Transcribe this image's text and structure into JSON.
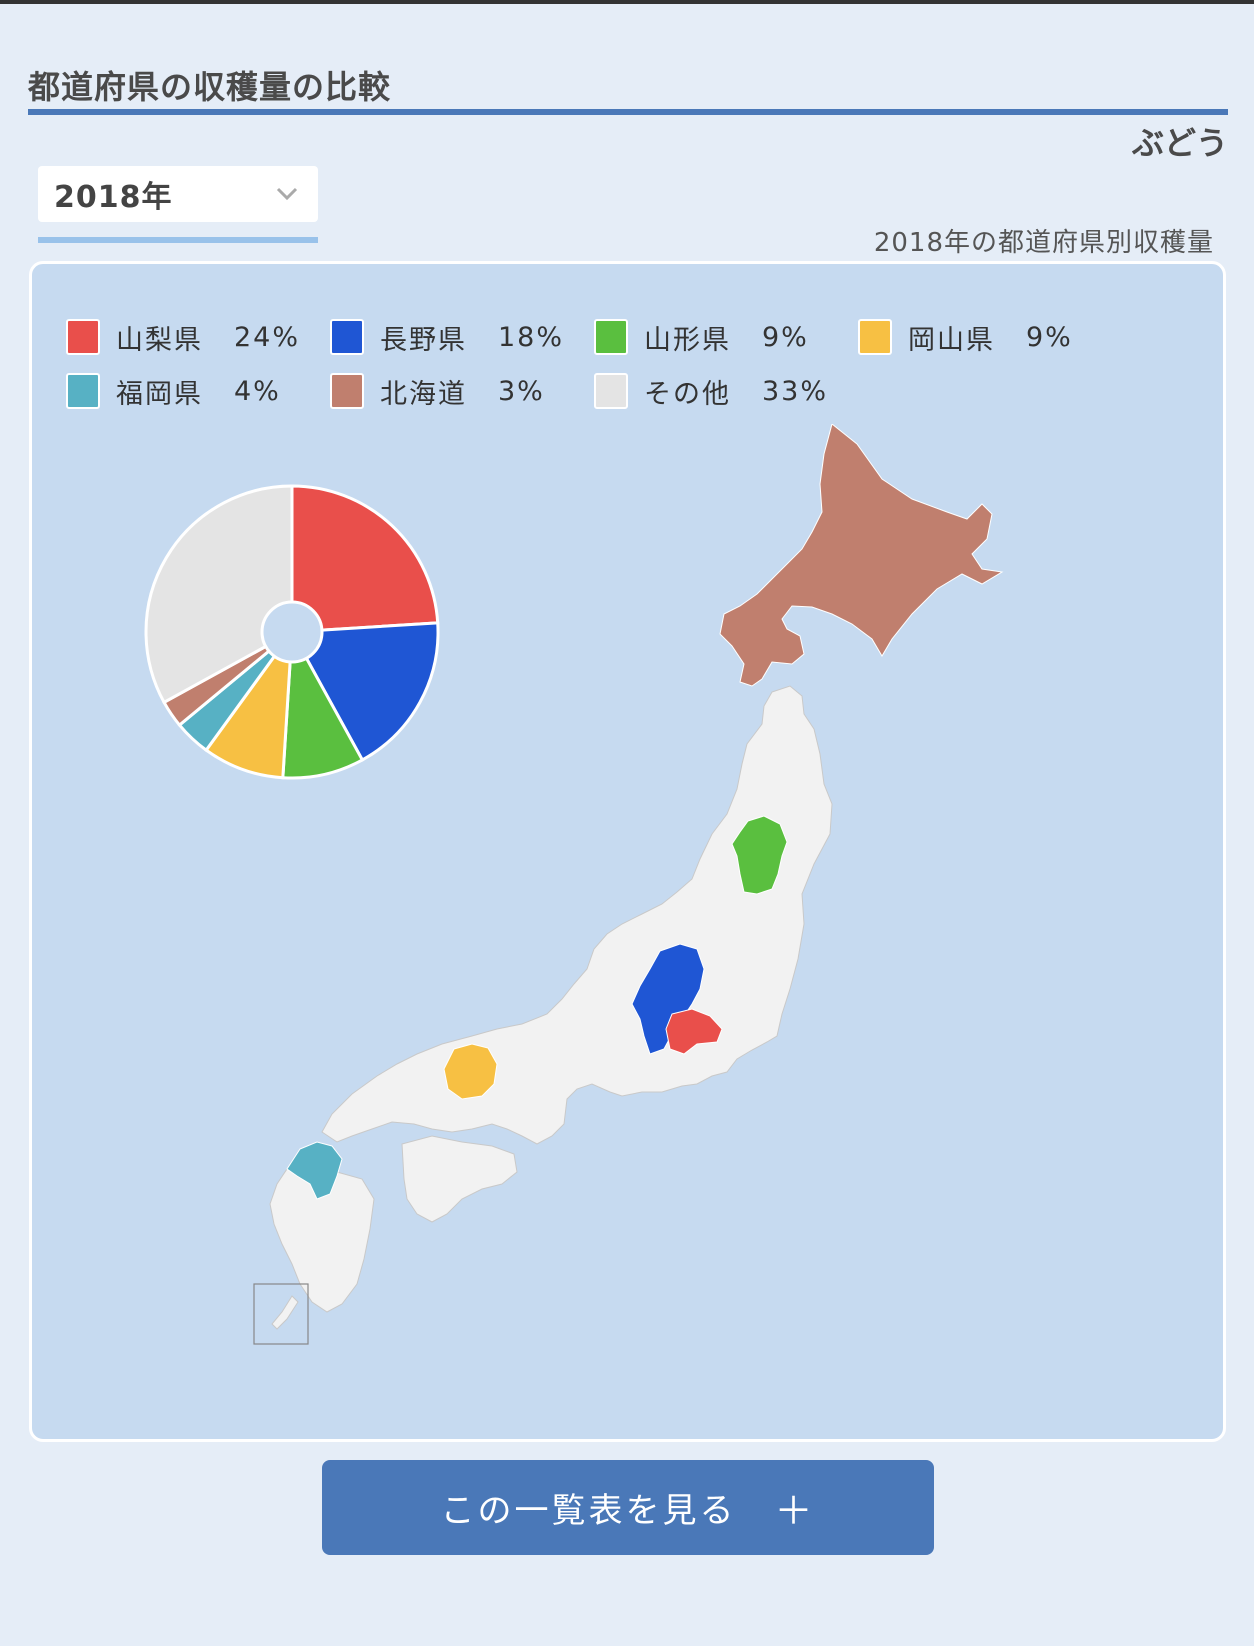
{
  "header": {
    "title": "都道府県の収穫量の比較",
    "crop_name": "ぶどう"
  },
  "year_select": {
    "selected": "2018年"
  },
  "chart_subtitle": "2018年の都道府県別収穫量",
  "view_button": {
    "label": "この一覧表を見る",
    "plus": "＋"
  },
  "chart_data": {
    "type": "pie",
    "title": "2018年の都道府県別収穫量",
    "legend_position": "top",
    "slices": [
      {
        "name": "山梨県",
        "value": 24,
        "label": "24%",
        "color": "#e94f4b"
      },
      {
        "name": "長野県",
        "value": 18,
        "label": "18%",
        "color": "#1f56d4"
      },
      {
        "name": "山形県",
        "value": 9,
        "label": "9%",
        "color": "#5abf3f"
      },
      {
        "name": "岡山県",
        "value": 9,
        "label": "9%",
        "color": "#f7c043"
      },
      {
        "name": "福岡県",
        "value": 4,
        "label": "4%",
        "color": "#57b1c4"
      },
      {
        "name": "北海道",
        "value": 3,
        "label": "3%",
        "color": "#c07f6e"
      },
      {
        "name": "その他",
        "value": 33,
        "label": "33%",
        "color": "#e4e4e4"
      }
    ]
  }
}
